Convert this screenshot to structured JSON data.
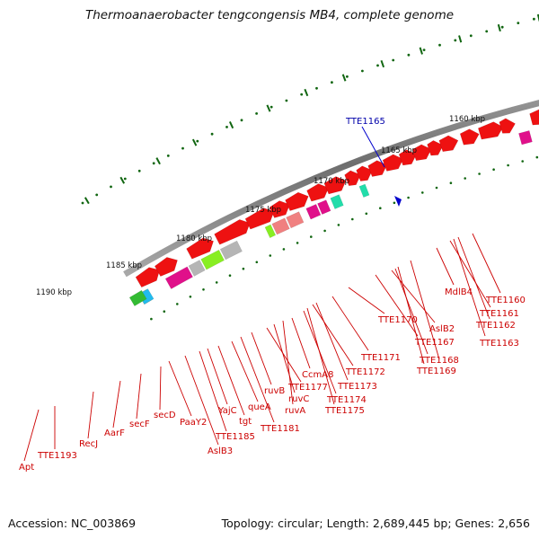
{
  "title": "Thermoanaerobacter tengcongensis MB4, complete genome",
  "footer": {
    "accession": "Accession: NC_003869",
    "summary": "Topology: circular; Length: 2,689,445 bp; Genes: 2,656"
  },
  "highlight": {
    "label": "TTE1165",
    "color": "#0000cc"
  },
  "scale_labels": [
    "1160 kbp",
    "1165 kbp",
    "1170 kbp",
    "1175 kbp",
    "1180 kbp",
    "1185 kbp",
    "1190 kbp"
  ],
  "gene_labels": [
    "Apt",
    "TTE1193",
    "RecJ",
    "AarF",
    "secF",
    "secD",
    "PaaY2",
    "AslB3",
    "TTE1185",
    "YajC",
    "tgt",
    "queA",
    "TTE1181",
    "ruvB",
    "TTE1177",
    "ruvC",
    "ruvA",
    "CcmA8",
    "TTE1174",
    "TTE1175",
    "TTE1172",
    "TTE1173",
    "TTE1171",
    "TTE1170",
    "TTE1167",
    "AslB2",
    "TTE1168",
    "TTE1169",
    "MdlB4",
    "TTE1161",
    "TTE1162",
    "TTE1160",
    "TTE1163"
  ],
  "colors": {
    "forward_cds": "#ee1111",
    "backbone": "#808080",
    "tick": "#116611",
    "label": "#cc0000",
    "grey_feature": "#b5b5b5",
    "magenta_feature": "#e0108a",
    "pink_feature": "#f08080",
    "lime_feature": "#88ee22",
    "teal_feature": "#22ddaa",
    "cyan_feature": "#22bbee",
    "orange_feature": "#ff9900"
  }
}
